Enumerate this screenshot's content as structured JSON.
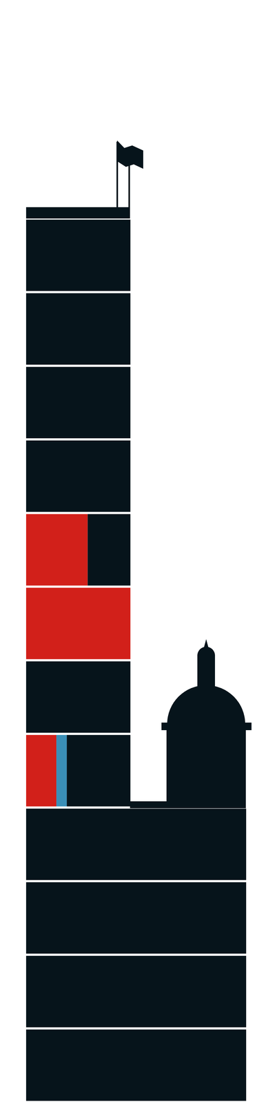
{
  "chart_data": {
    "type": "bar",
    "orientation": "horizontal",
    "stacked": true,
    "tick_labels": false,
    "categories": [
      null,
      null,
      null,
      null,
      null,
      null,
      null,
      null,
      null,
      null,
      null,
      null
    ],
    "xlim": [
      0,
      211
    ],
    "series": [
      {
        "color": "#d2201a",
        "values": [
          0,
          0,
          0,
          0,
          59,
          100,
          0,
          29,
          0,
          0,
          0,
          0
        ]
      },
      {
        "color": "#3a8fb7",
        "values": [
          0,
          0,
          0,
          0,
          0,
          0,
          0,
          10,
          0,
          0,
          0,
          0
        ]
      },
      {
        "color": "#06141b",
        "values": [
          100,
          100,
          100,
          100,
          41,
          0,
          100,
          61,
          211,
          211,
          211,
          211
        ]
      }
    ]
  }
}
